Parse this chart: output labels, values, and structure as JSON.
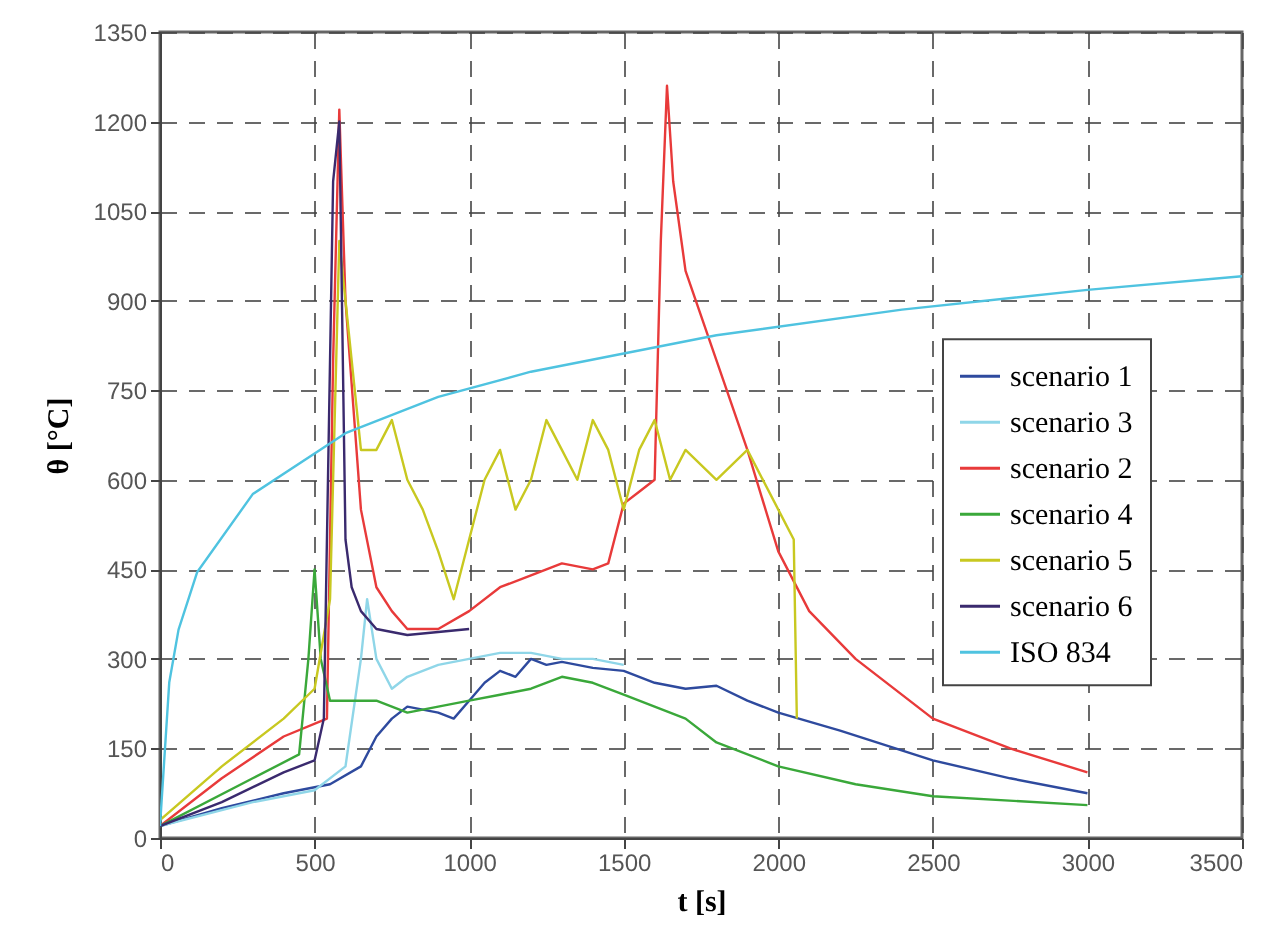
{
  "chart_data": {
    "type": "line",
    "xlabel": "t [s]",
    "ylabel": "θ [°C]",
    "xlim": [
      0,
      3500
    ],
    "xticks": [
      0,
      500,
      1000,
      1500,
      2000,
      2500,
      3000,
      3500
    ],
    "ylim": [
      0,
      1350
    ],
    "yticks": [
      0,
      150,
      300,
      450,
      600,
      750,
      900,
      1050,
      1200,
      1350
    ],
    "grid": true,
    "legend": "right",
    "line_style": "solid",
    "series": [
      {
        "name": "scenario 1",
        "color": "#2e4a9e",
        "x": [
          0,
          200,
          400,
          550,
          650,
          700,
          750,
          800,
          900,
          950,
          1000,
          1050,
          1100,
          1150,
          1200,
          1250,
          1300,
          1400,
          1500,
          1600,
          1700,
          1800,
          1900,
          2000,
          2200,
          2500,
          2750,
          3000
        ],
        "values": [
          20,
          50,
          75,
          90,
          120,
          170,
          200,
          220,
          210,
          200,
          230,
          260,
          280,
          270,
          300,
          290,
          295,
          285,
          280,
          260,
          250,
          255,
          230,
          210,
          180,
          130,
          100,
          75
        ]
      },
      {
        "name": "scenario 3",
        "color": "#8fd6e8",
        "x": [
          0,
          300,
          500,
          600,
          650,
          670,
          700,
          750,
          800,
          900,
          1000,
          1100,
          1200,
          1300,
          1400,
          1500
        ],
        "values": [
          20,
          60,
          80,
          120,
          300,
          400,
          300,
          250,
          270,
          290,
          300,
          310,
          310,
          300,
          300,
          290
        ]
      },
      {
        "name": "scenario 2",
        "color": "#e83a3a",
        "x": [
          0,
          200,
          400,
          540,
          560,
          580,
          600,
          650,
          700,
          750,
          800,
          900,
          1000,
          1100,
          1200,
          1300,
          1400,
          1450,
          1500,
          1550,
          1600,
          1620,
          1640,
          1660,
          1700,
          1800,
          1900,
          2000,
          2100,
          2250,
          2500,
          2750,
          3000
        ],
        "values": [
          20,
          100,
          170,
          200,
          800,
          1220,
          900,
          550,
          420,
          380,
          350,
          350,
          380,
          420,
          440,
          460,
          450,
          460,
          560,
          580,
          600,
          1000,
          1260,
          1100,
          950,
          800,
          650,
          480,
          380,
          300,
          200,
          150,
          110
        ]
      },
      {
        "name": "scenario 4",
        "color": "#3aa83a",
        "x": [
          0,
          300,
          450,
          480,
          500,
          520,
          550,
          600,
          700,
          800,
          900,
          1000,
          1100,
          1200,
          1300,
          1400,
          1500,
          1600,
          1700,
          1800,
          2000,
          2250,
          2500,
          3000
        ],
        "values": [
          20,
          100,
          140,
          300,
          450,
          300,
          230,
          230,
          230,
          210,
          220,
          230,
          240,
          250,
          270,
          260,
          240,
          220,
          200,
          160,
          120,
          90,
          70,
          55
        ]
      },
      {
        "name": "scenario 5",
        "color": "#c8c820",
        "x": [
          0,
          200,
          400,
          500,
          550,
          580,
          600,
          650,
          700,
          750,
          800,
          850,
          900,
          950,
          1000,
          1050,
          1100,
          1150,
          1200,
          1250,
          1300,
          1350,
          1400,
          1450,
          1500,
          1550,
          1600,
          1650,
          1700,
          1800,
          1900,
          2000,
          2050,
          2060
        ],
        "values": [
          30,
          120,
          200,
          250,
          400,
          1000,
          900,
          650,
          650,
          700,
          600,
          550,
          480,
          400,
          500,
          600,
          650,
          550,
          600,
          700,
          650,
          600,
          700,
          650,
          550,
          650,
          700,
          600,
          650,
          600,
          650,
          550,
          500,
          200
        ]
      },
      {
        "name": "scenario 6",
        "color": "#3a2a6e",
        "x": [
          0,
          200,
          400,
          500,
          530,
          560,
          580,
          600,
          620,
          650,
          700,
          800,
          900,
          1000
        ],
        "values": [
          20,
          60,
          110,
          130,
          200,
          1100,
          1200,
          500,
          420,
          380,
          350,
          340,
          345,
          350
        ]
      },
      {
        "name": "ISO 834",
        "color": "#4fc3e0",
        "x": [
          0,
          30,
          60,
          120,
          300,
          600,
          900,
          1200,
          1800,
          2400,
          3000,
          3500
        ],
        "values": [
          20,
          261,
          349,
          445,
          576,
          678,
          739,
          781,
          842,
          885,
          918,
          941
        ]
      }
    ]
  }
}
